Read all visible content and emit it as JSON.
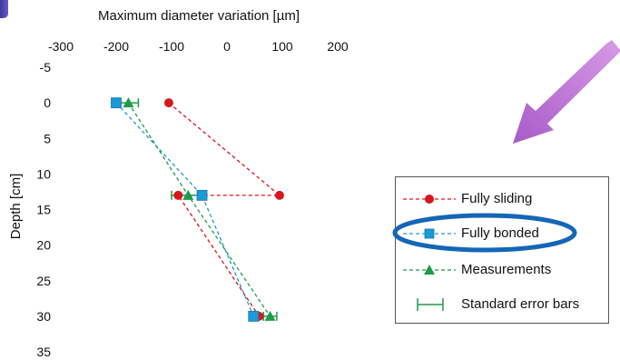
{
  "chart_data": {
    "type": "scatter",
    "title": "Maximum diameter variation [µm]",
    "xlabel": "Maximum diameter variation [µm]",
    "ylabel": "Depth [cm]",
    "xlim": [
      -300,
      200
    ],
    "ylim": [
      -5,
      35
    ],
    "x_axis_position": "top",
    "y_inverted": true,
    "x_ticks": [
      "-300",
      "-200",
      "-100",
      "0",
      "100",
      "200"
    ],
    "y_ticks": [
      "-5",
      "0",
      "5",
      "10",
      "15",
      "20",
      "25",
      "30",
      "35"
    ],
    "grid": false,
    "legend_position": "right",
    "series": [
      {
        "name": "Fully sliding",
        "color": "#d9161c",
        "marker": "circle",
        "line": "dashed",
        "points": [
          {
            "x": -105,
            "y": 0
          },
          {
            "x": 95,
            "y": 13
          },
          {
            "x": -88,
            "y": 13
          },
          {
            "x": 58,
            "y": 30
          }
        ]
      },
      {
        "name": "Fully bonded",
        "color": "#1a9ad6",
        "marker": "square",
        "line": "dashed",
        "points": [
          {
            "x": -200,
            "y": 0
          },
          {
            "x": -45,
            "y": 13
          },
          {
            "x": 48,
            "y": 30
          }
        ]
      },
      {
        "name": "Measurements",
        "color": "#1e9b4a",
        "marker": "triangle",
        "line": "dashed",
        "points": [
          {
            "x": -178,
            "y": 0,
            "err": 18
          },
          {
            "x": -70,
            "y": 13,
            "err": 30
          },
          {
            "x": 78,
            "y": 30,
            "err": 12
          }
        ]
      }
    ],
    "legend": [
      "Fully sliding",
      "Fully bonded",
      "Measurements",
      "Standard error bars"
    ]
  },
  "annotations": {
    "arrow_color": "#b56ad0",
    "highlight_ellipse_color": "#1466b8",
    "highlighted_entry": "Fully bonded"
  }
}
